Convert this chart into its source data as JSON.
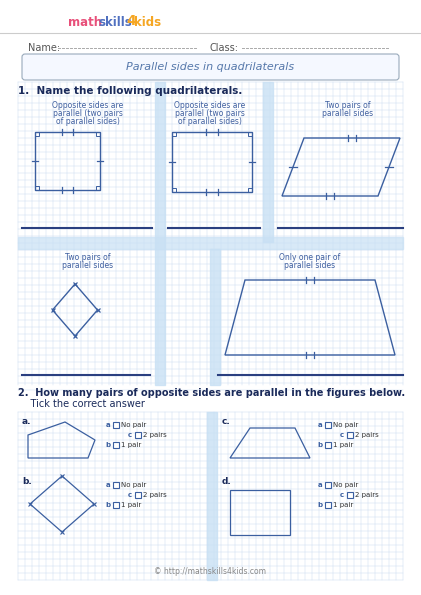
{
  "title": "Parallel sides in quadrilaterals",
  "name_label": "Name:",
  "class_label": "Class:",
  "q1_label": "1.  Name the following quadrilaterals.",
  "q2_label": "2.  How many pairs of opposite sides are parallel in the figures below.",
  "q2_sub": "    Tick the correct answer",
  "bg_color": "#ffffff",
  "grid_color": "#ccddf0",
  "section_bg": "#c8e0f4",
  "shape_color": "#3b5fa0",
  "text_color": "#4060a0",
  "dark_line": "#2a3f80",
  "footer": "© http://mathskills4kids.com",
  "logo_math": "#e8507a",
  "logo_skills": "#5070c0",
  "logo_4": "#f5a623",
  "logo_kids": "#f5a623"
}
